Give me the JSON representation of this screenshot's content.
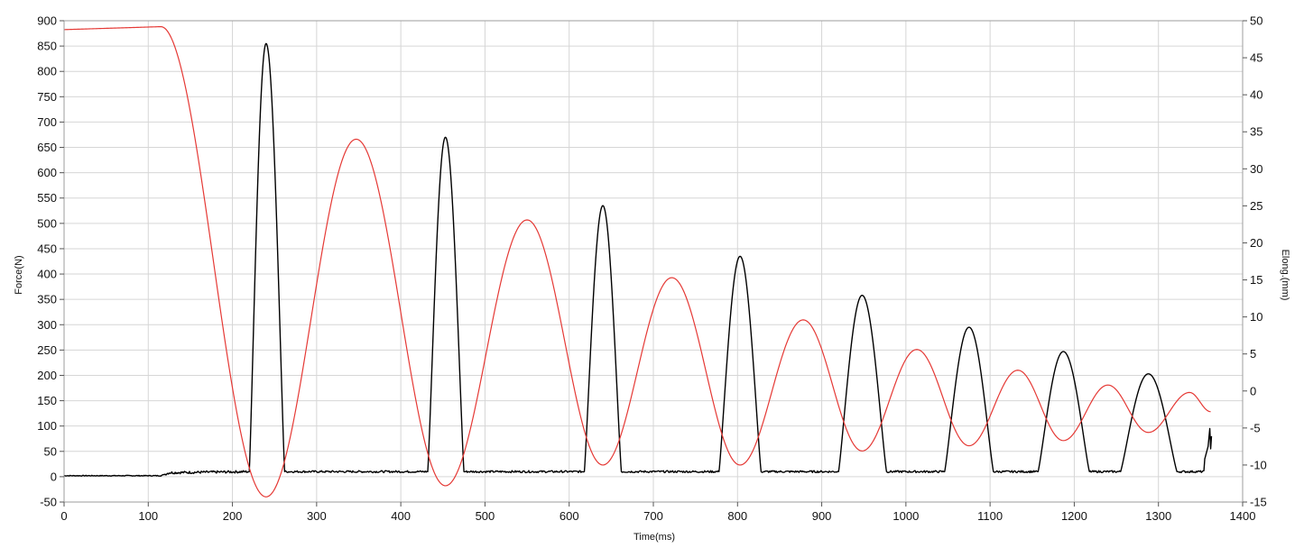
{
  "chart_data": {
    "type": "line",
    "title": "",
    "xlabel": "Time(ms)",
    "ylabel_left": "Force(N)",
    "ylabel_right": "Elong.(mm)",
    "xlim": [
      0,
      1400
    ],
    "ylim_left": [
      -50,
      900
    ],
    "ylim_right": [
      -15,
      50
    ],
    "grid": true,
    "legend": "none",
    "x_ticks": [
      "0",
      "100",
      "200",
      "300",
      "400",
      "500",
      "600",
      "700",
      "800",
      "900",
      "1000",
      "1100",
      "1200",
      "1300",
      "1400"
    ],
    "y_left_ticks": [
      "-50",
      "0",
      "50",
      "100",
      "150",
      "200",
      "250",
      "300",
      "350",
      "400",
      "450",
      "500",
      "550",
      "600",
      "650",
      "700",
      "750",
      "800",
      "850",
      "900"
    ],
    "y_right_ticks": [
      "-15",
      "-10",
      "-5",
      "0",
      "5",
      "10",
      "15",
      "20",
      "25",
      "30",
      "35",
      "40",
      "45",
      "50"
    ],
    "series": [
      {
        "axis": "left",
        "color": "#000000",
        "baseline": [
          [
            0,
            2
          ],
          [
            115,
            2
          ],
          [
            125,
            8
          ],
          [
            220,
            10
          ]
        ],
        "peaks": [
          {
            "start": 220,
            "peak_x": 240,
            "peak": 855,
            "end": 262,
            "base": 10
          },
          {
            "start": 432,
            "peak_x": 453,
            "peak": 670,
            "end": 475,
            "base": 10
          },
          {
            "start": 618,
            "peak_x": 640,
            "peak": 535,
            "end": 662,
            "base": 10
          },
          {
            "start": 778,
            "peak_x": 803,
            "peak": 435,
            "end": 828,
            "base": 10
          },
          {
            "start": 920,
            "peak_x": 948,
            "peak": 358,
            "end": 977,
            "base": 10
          },
          {
            "start": 1046,
            "peak_x": 1075,
            "peak": 295,
            "end": 1104,
            "base": 10
          },
          {
            "start": 1157,
            "peak_x": 1187,
            "peak": 247,
            "end": 1218,
            "base": 10
          },
          {
            "start": 1255,
            "peak_x": 1288,
            "peak": 203,
            "end": 1322,
            "base": 10
          }
        ],
        "tail": [
          [
            1355,
            35
          ],
          [
            1359,
            60
          ],
          [
            1361,
            95
          ],
          [
            1362,
            55
          ],
          [
            1363,
            80
          ]
        ]
      },
      {
        "axis": "right",
        "color": "#e53935",
        "keypoints": [
          [
            0,
            48.8
          ],
          [
            115,
            49.2
          ],
          [
            240,
            -14.3
          ],
          [
            347,
            34.0
          ],
          [
            453,
            -12.8
          ],
          [
            550,
            23.1
          ],
          [
            640,
            -10.0
          ],
          [
            722,
            15.3
          ],
          [
            803,
            -10.0
          ],
          [
            878,
            9.6
          ],
          [
            948,
            -8.1
          ],
          [
            1013,
            5.6
          ],
          [
            1075,
            -7.4
          ],
          [
            1133,
            2.8
          ],
          [
            1187,
            -6.7
          ],
          [
            1240,
            0.8
          ],
          [
            1288,
            -5.6
          ],
          [
            1337,
            -0.2
          ],
          [
            1362,
            -2.8
          ]
        ]
      }
    ]
  }
}
